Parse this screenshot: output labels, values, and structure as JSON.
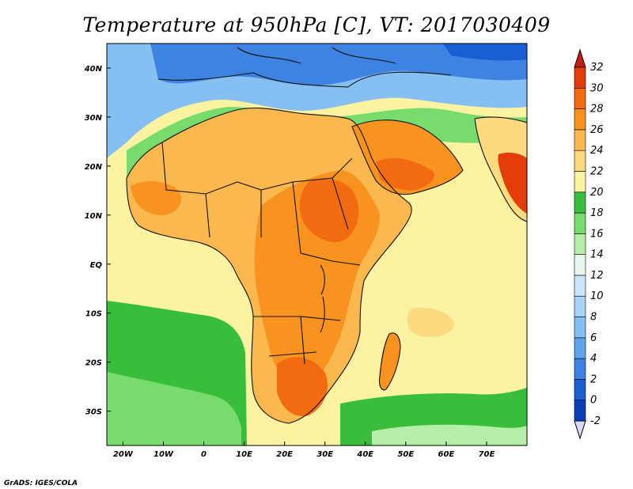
{
  "title": "Temperature at 950hPa [C], VT: 2017030409",
  "credit": "GrADS: IGES/COLA",
  "map": {
    "lon_range": [
      -24,
      80
    ],
    "lat_range": [
      -37,
      45
    ],
    "lon_ticks": [
      {
        "value": -20,
        "label": "20W"
      },
      {
        "value": -10,
        "label": "10W"
      },
      {
        "value": 0,
        "label": "0"
      },
      {
        "value": 10,
        "label": "10E"
      },
      {
        "value": 20,
        "label": "20E"
      },
      {
        "value": 30,
        "label": "30E"
      },
      {
        "value": 40,
        "label": "40E"
      },
      {
        "value": 50,
        "label": "50E"
      },
      {
        "value": 60,
        "label": "60E"
      },
      {
        "value": 70,
        "label": "70E"
      }
    ],
    "lat_ticks": [
      {
        "value": 40,
        "label": "40N"
      },
      {
        "value": 30,
        "label": "30N"
      },
      {
        "value": 20,
        "label": "20N"
      },
      {
        "value": 10,
        "label": "10N"
      },
      {
        "value": 0,
        "label": "EQ"
      },
      {
        "value": -10,
        "label": "10S"
      },
      {
        "value": -20,
        "label": "20S"
      },
      {
        "value": -30,
        "label": "30S"
      }
    ]
  },
  "colorbar": {
    "levels": [
      {
        "value": "-2",
        "color": "#08087a"
      },
      {
        "value": "0",
        "color": "#0a3fb4"
      },
      {
        "value": "2",
        "color": "#1a5fd2"
      },
      {
        "value": "4",
        "color": "#3e82e2"
      },
      {
        "value": "6",
        "color": "#5ea3ec"
      },
      {
        "value": "8",
        "color": "#86bff2"
      },
      {
        "value": "10",
        "color": "#a6d3f6"
      },
      {
        "value": "12",
        "color": "#c8e6f8"
      },
      {
        "value": "14",
        "color": "#e6f6ea"
      },
      {
        "value": "16",
        "color": "#b4eea8"
      },
      {
        "value": "18",
        "color": "#78dc6c"
      },
      {
        "value": "20",
        "color": "#38be3a"
      },
      {
        "value": "22",
        "color": "#fbf3a2"
      },
      {
        "value": "24",
        "color": "#fcda80"
      },
      {
        "value": "26",
        "color": "#fbb84e"
      },
      {
        "value": "28",
        "color": "#f7931e"
      },
      {
        "value": "30",
        "color": "#f36b10"
      },
      {
        "value": "32",
        "color": "#e23c0a"
      }
    ],
    "under_color": "#dcd6f8",
    "over_color": "#c81e10"
  },
  "field_colors": {
    "ocean_warm": "#fbf3a2",
    "ocean_mid": "#38be3a",
    "ocean_cool": "#78dc6c",
    "ocean_cold": "#b4eea8",
    "land_hot": "#f7931e",
    "land_very_hot": "#f36b10",
    "land_extreme": "#e23c0a",
    "land_warm": "#fbb84e",
    "land_mild": "#fcda80",
    "cool_north": "#86bff2",
    "cold_north": "#3e82e2",
    "coldest": "#1a5fd2",
    "outline": "#111111"
  }
}
